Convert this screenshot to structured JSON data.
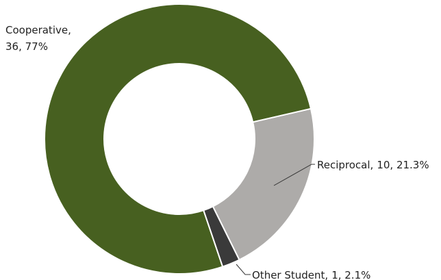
{
  "chart_data": {
    "type": "donut",
    "categories": [
      "Cooperative",
      "Reciprocal",
      "Other Student"
    ],
    "values": [
      36,
      10,
      1
    ],
    "value_labels": [
      "36, 77%",
      "10, 21.3%",
      "1, 2.1%"
    ],
    "colors": [
      "#476020",
      "#adaba9",
      "#3a3a3a"
    ]
  }
}
